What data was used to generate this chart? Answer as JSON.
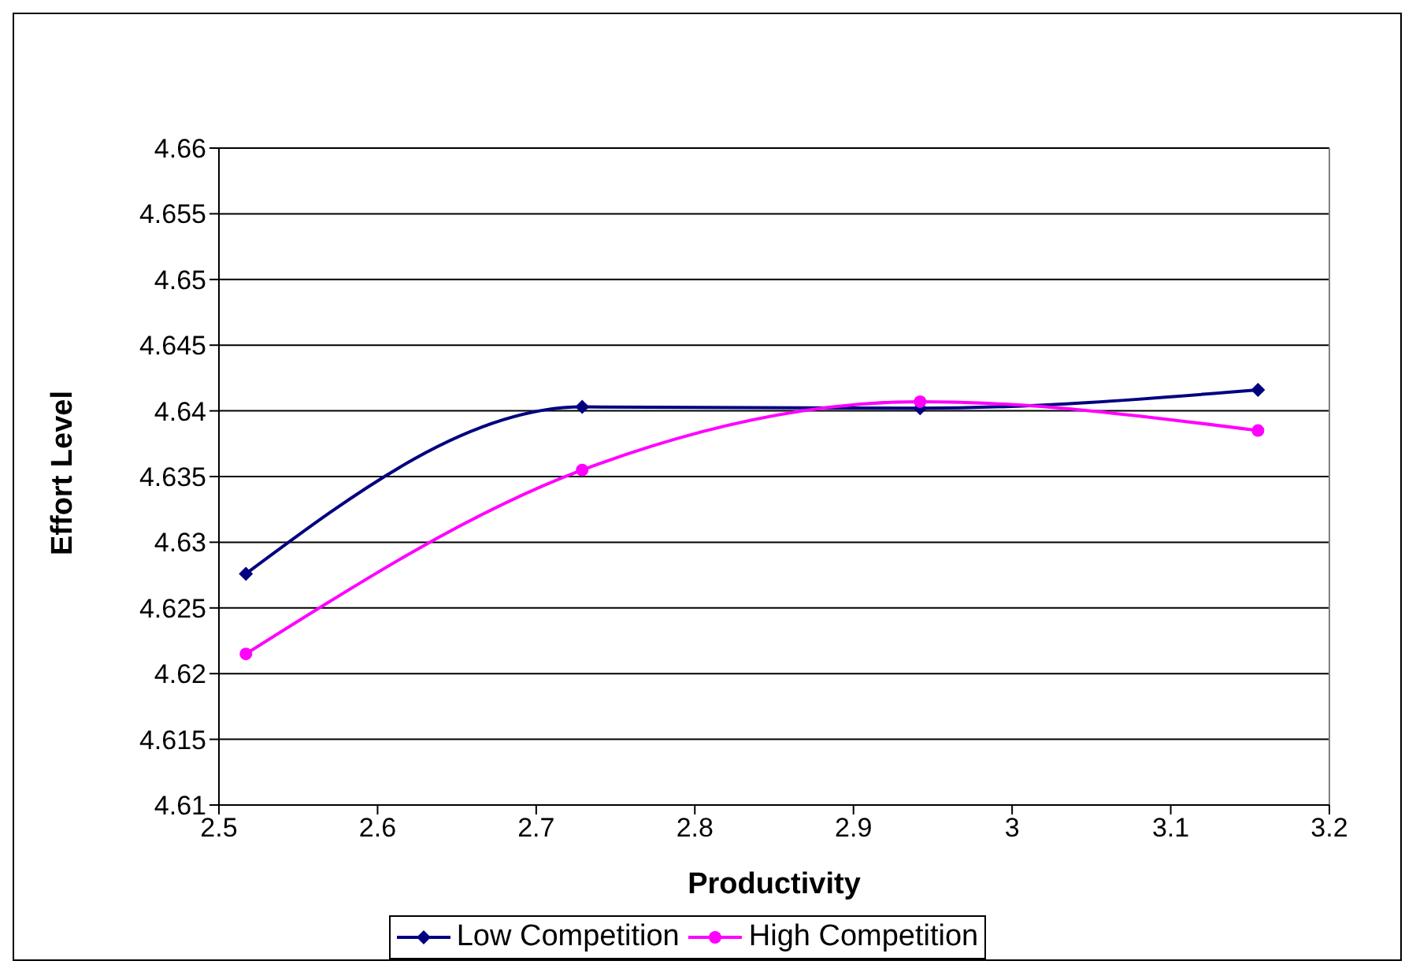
{
  "chart_data": {
    "type": "line",
    "xlabel": "Productivity",
    "ylabel": "Effort Level",
    "xlim": [
      2.5,
      3.2
    ],
    "xticks": [
      2.5,
      2.6,
      2.7,
      2.8,
      2.9,
      3,
      3.1,
      3.2
    ],
    "ylim": [
      4.61,
      4.66
    ],
    "yticks": [
      4.61,
      4.615,
      4.62,
      4.625,
      4.63,
      4.635,
      4.64,
      4.645,
      4.65,
      4.655,
      4.66
    ],
    "grid": "y",
    "legend": "bottom",
    "x": [
      2.517,
      2.729,
      2.942,
      3.155
    ],
    "series": [
      {
        "name": "Low Competition",
        "color": "#000080",
        "marker": "diamond",
        "values": [
          4.6276,
          4.6403,
          4.6402,
          4.6416
        ]
      },
      {
        "name": "High Competition",
        "color": "#ff00ff",
        "marker": "circle",
        "values": [
          4.6215,
          4.6355,
          4.6407,
          4.6385
        ]
      }
    ]
  }
}
